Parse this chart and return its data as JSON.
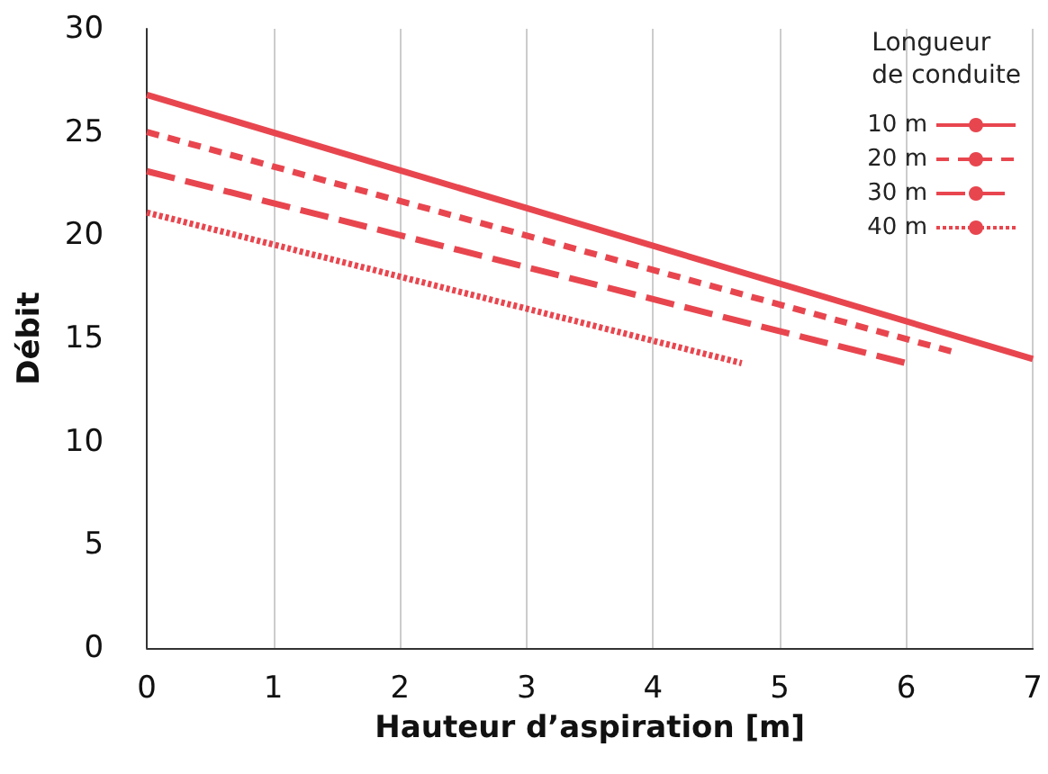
{
  "chart_data": {
    "type": "line",
    "xlabel": "Hauteur d’aspiration [m]",
    "ylabel": "Débit",
    "legend_title": "Longueur\nde conduite",
    "xlim": [
      0,
      7
    ],
    "xticks": [
      0,
      1,
      2,
      3,
      4,
      5,
      6,
      7
    ],
    "ylim": [
      0,
      30
    ],
    "yticks": [
      0,
      5,
      10,
      15,
      20,
      25,
      30
    ],
    "grid": "x",
    "legend": "top right",
    "marker": "none",
    "series": [
      {
        "name": "10 m",
        "color": "#e8464f",
        "x": [
          0,
          7
        ],
        "values": [
          26.8,
          14.0
        ],
        "line_style": "solid"
      },
      {
        "name": "20 m",
        "color": "#e8464f",
        "x": [
          0,
          6.4
        ],
        "values": [
          25.0,
          14.3
        ],
        "line_style": "dashed"
      },
      {
        "name": "30 m",
        "color": "#e8464f",
        "x": [
          0,
          6
        ],
        "values": [
          23.1,
          13.8
        ],
        "line_style": "longdash"
      },
      {
        "name": "40 m",
        "color": "#e8464f",
        "x": [
          0,
          4.7
        ],
        "values": [
          21.1,
          13.8
        ],
        "line_style": "dotted"
      }
    ]
  }
}
